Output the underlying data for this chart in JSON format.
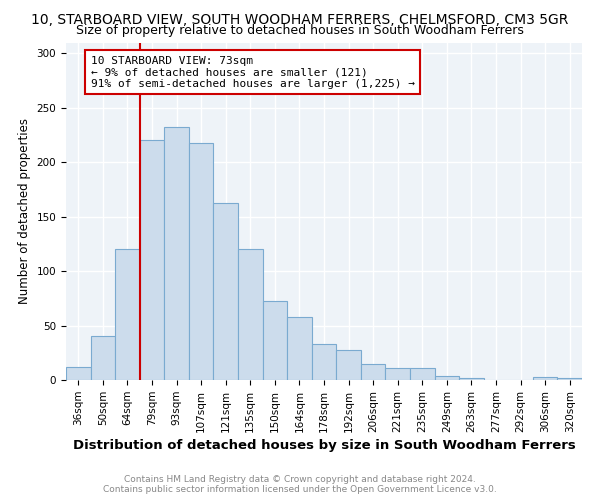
{
  "title": "10, STARBOARD VIEW, SOUTH WOODHAM FERRERS, CHELMSFORD, CM3 5GR",
  "subtitle": "Size of property relative to detached houses in South Woodham Ferrers",
  "xlabel": "Distribution of detached houses by size in South Woodham Ferrers",
  "ylabel": "Number of detached properties",
  "categories": [
    "36sqm",
    "50sqm",
    "64sqm",
    "79sqm",
    "93sqm",
    "107sqm",
    "121sqm",
    "135sqm",
    "150sqm",
    "164sqm",
    "178sqm",
    "192sqm",
    "206sqm",
    "221sqm",
    "235sqm",
    "249sqm",
    "263sqm",
    "277sqm",
    "292sqm",
    "306sqm",
    "320sqm"
  ],
  "values": [
    12,
    40,
    120,
    220,
    232,
    218,
    163,
    120,
    73,
    58,
    33,
    28,
    15,
    11,
    11,
    4,
    2,
    0,
    0,
    3,
    2
  ],
  "bar_color": "#ccdcec",
  "bar_edge_color": "#7aaad0",
  "vline_pos": 2.5,
  "vline_color": "#cc0000",
  "annotation_line1": "10 STARBOARD VIEW: 73sqm",
  "annotation_line2": "← 9% of detached houses are smaller (121)",
  "annotation_line3": "91% of semi-detached houses are larger (1,225) →",
  "annotation_box_facecolor": "#ffffff",
  "annotation_box_edgecolor": "#cc0000",
  "footer1": "Contains HM Land Registry data © Crown copyright and database right 2024.",
  "footer2": "Contains public sector information licensed under the Open Government Licence v3.0.",
  "ylim": [
    0,
    310
  ],
  "yticks": [
    0,
    50,
    100,
    150,
    200,
    250,
    300
  ],
  "title_fontsize": 10,
  "subtitle_fontsize": 9,
  "xlabel_fontsize": 9.5,
  "ylabel_fontsize": 8.5,
  "tick_fontsize": 7.5,
  "annotation_fontsize": 8,
  "footer_fontsize": 6.5,
  "bg_color": "#eef3f8",
  "grid_color": "#ffffff"
}
